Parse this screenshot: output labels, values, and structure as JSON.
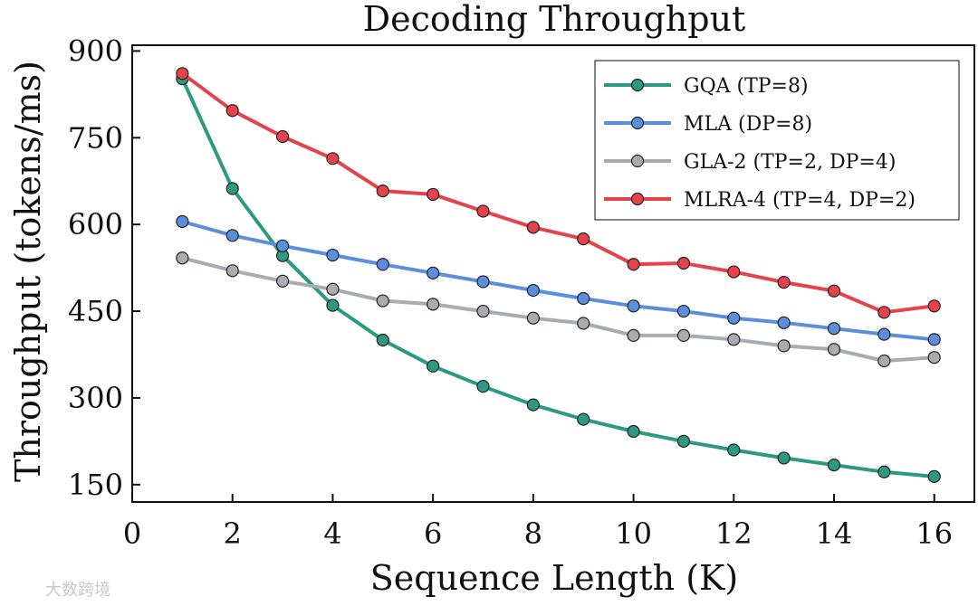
{
  "chart_data": {
    "type": "line",
    "title": "Decoding Throughput",
    "xlabel": "Sequence Length (K)",
    "ylabel": "Throughput (tokens/ms)",
    "xlim": [
      0,
      16.8
    ],
    "ylim": [
      120,
      910
    ],
    "xticks": [
      0,
      2,
      4,
      6,
      8,
      10,
      12,
      14,
      16
    ],
    "yticks": [
      150,
      300,
      450,
      600,
      750,
      900
    ],
    "grid": false,
    "legend_position": "top-right",
    "x": [
      1,
      2,
      3,
      4,
      5,
      6,
      7,
      8,
      9,
      10,
      11,
      12,
      13,
      14,
      15,
      16
    ],
    "series": [
      {
        "name": "GQA (TP=8)",
        "color": "#2e9983",
        "values": [
          852,
          662,
          546,
          460,
          400,
          355,
          320,
          288,
          263,
          242,
          225,
          210,
          196,
          184,
          172,
          164
        ]
      },
      {
        "name": "MLA (DP=8)",
        "color": "#5b8fdd",
        "values": [
          605,
          581,
          563,
          547,
          531,
          516,
          501,
          486,
          472,
          459,
          450,
          438,
          430,
          420,
          410,
          401
        ]
      },
      {
        "name": "GLA-2 (TP=2, DP=4)",
        "color": "#a8acb0",
        "values": [
          542,
          520,
          502,
          488,
          468,
          462,
          450,
          438,
          429,
          408,
          408,
          401,
          390,
          384,
          364,
          370
        ]
      },
      {
        "name": "MLRA-4 (TP=4, DP=2)",
        "color": "#e4434b",
        "values": [
          861,
          797,
          752,
          714,
          658,
          652,
          623,
          595,
          575,
          531,
          533,
          518,
          500,
          485,
          448,
          459
        ]
      }
    ]
  },
  "watermark": "大数跨境"
}
